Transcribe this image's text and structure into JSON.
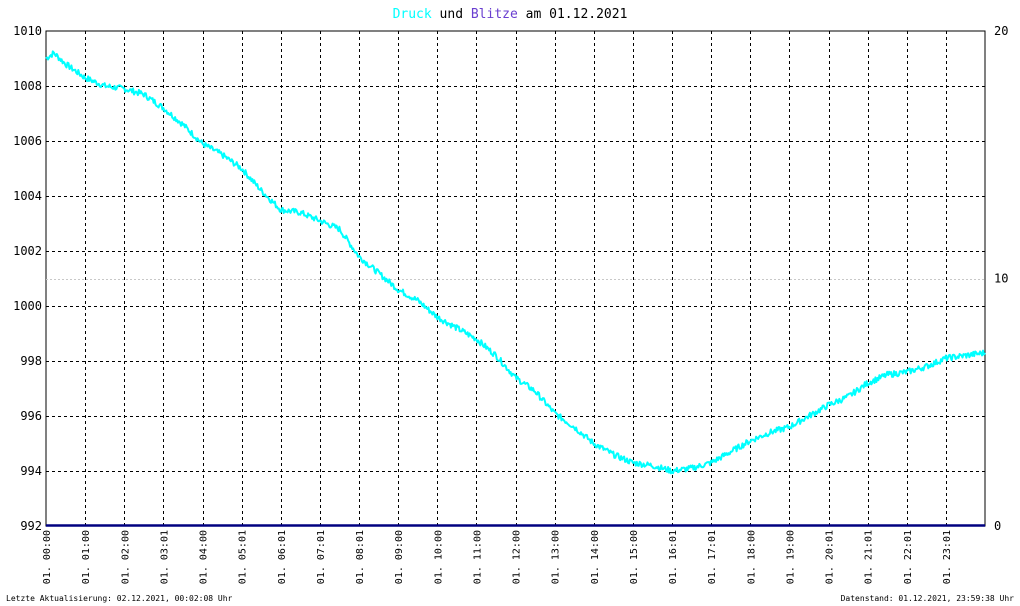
{
  "title": {
    "series1_word": "Druck",
    "connector": " und ",
    "series2_word": "Blitze",
    "suffix": " am 01.12.2021"
  },
  "colors": {
    "pressure": "#00ffff",
    "lightning": "#6a3fd0",
    "baseline": "#000080",
    "grid": "#000000",
    "frame": "#000000"
  },
  "footer": {
    "left": "Letzte Aktualisierung: 02.12.2021, 00:02:08 Uhr",
    "right": "Datenstand: 01.12.2021, 23:59:38 Uhr"
  },
  "chart_data": {
    "type": "line",
    "title": "Druck und Blitze am 01.12.2021",
    "x_range": [
      "01. 00:00",
      "01. 23:59"
    ],
    "x_tick_labels": [
      "01. 00:00",
      "01. 01:00",
      "01. 02:00",
      "01. 03:01",
      "01. 04:00",
      "01. 05:01",
      "01. 06:01",
      "01. 07:01",
      "01. 08:01",
      "01. 09:00",
      "01. 10:00",
      "01. 11:00",
      "01. 12:00",
      "01. 13:00",
      "01. 14:00",
      "01. 15:00",
      "01. 16:01",
      "01. 17:01",
      "01. 18:00",
      "01. 19:00",
      "01. 20:01",
      "01. 21:01",
      "01. 22:01",
      "01. 23:01"
    ],
    "y_left": {
      "ylim": [
        992,
        1010
      ],
      "ticks": [
        1010,
        1008,
        1006,
        1004,
        1002,
        1000,
        998,
        996,
        994,
        992
      ]
    },
    "y_right": {
      "ylim": [
        0,
        20
      ],
      "ticks": [
        20,
        10,
        0
      ]
    },
    "grid": true,
    "series": [
      {
        "name": "Druck",
        "axis": "left",
        "color": "#00ffff",
        "x_hours": [
          0,
          0.2,
          0.5,
          1,
          1.5,
          2,
          2.5,
          3,
          3.5,
          4,
          4.5,
          5,
          5.5,
          6,
          6.5,
          7,
          7.5,
          8,
          8.5,
          9,
          9.5,
          10,
          10.5,
          11,
          11.5,
          12,
          12.5,
          13,
          13.5,
          14,
          14.5,
          15,
          15.5,
          16,
          16.5,
          17,
          17.5,
          18,
          18.5,
          19,
          19.5,
          20,
          20.5,
          21,
          21.5,
          22,
          22.5,
          23,
          23.5,
          24
        ],
        "values": [
          1009.0,
          1009.2,
          1008.8,
          1008.3,
          1008.0,
          1007.9,
          1007.7,
          1007.2,
          1006.6,
          1005.9,
          1005.5,
          1005.0,
          1004.2,
          1003.5,
          1003.4,
          1003.1,
          1002.8,
          1001.8,
          1001.2,
          1000.6,
          1000.2,
          999.6,
          999.2,
          998.8,
          998.2,
          997.4,
          996.9,
          996.1,
          995.6,
          995.0,
          994.6,
          994.3,
          994.2,
          994.0,
          994.1,
          994.3,
          994.7,
          995.1,
          995.4,
          995.6,
          996.0,
          996.4,
          996.7,
          997.2,
          997.5,
          997.6,
          997.8,
          998.1,
          998.2,
          998.3
        ]
      },
      {
        "name": "Blitze",
        "axis": "right",
        "color": "#000080",
        "x_hours": [
          0,
          24
        ],
        "values": [
          0,
          0
        ]
      }
    ]
  }
}
